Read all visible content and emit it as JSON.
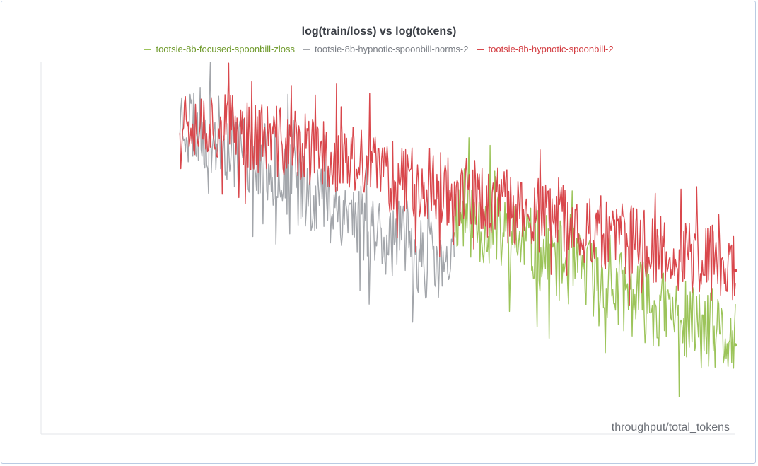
{
  "chart_data": {
    "type": "line",
    "title": "log(train/loss) vs log(tokens)",
    "xlabel": "throughput/total_tokens",
    "ylabel": "",
    "x_range": [
      0,
      1
    ],
    "y_range": [
      0,
      1
    ],
    "legend_placement": "top-center",
    "grid": false,
    "series": [
      {
        "name": "tootsie-8b-focused-spoonbill-zloss",
        "color": "#9cc45a",
        "x_start": 0.595,
        "x_end": 1.0,
        "trend_start": 0.6,
        "trend_end": 0.24,
        "noise_amplitude": 0.11,
        "seed": 11
      },
      {
        "name": "tootsie-8b-hypnotic-spoonbill-norms-2",
        "color": "#a3a6ab",
        "x_start": 0.2,
        "x_end": 0.595,
        "trend_start": 0.86,
        "trend_end": 0.43,
        "noise_amplitude": 0.11,
        "seed": 23
      },
      {
        "name": "tootsie-8b-hypnotic-spoonbill-2",
        "color": "#d9474c",
        "x_start": 0.2,
        "x_end": 1.0,
        "trend_start": 0.86,
        "trend_end": 0.44,
        "noise_amplitude": 0.1,
        "seed": 37
      }
    ]
  }
}
